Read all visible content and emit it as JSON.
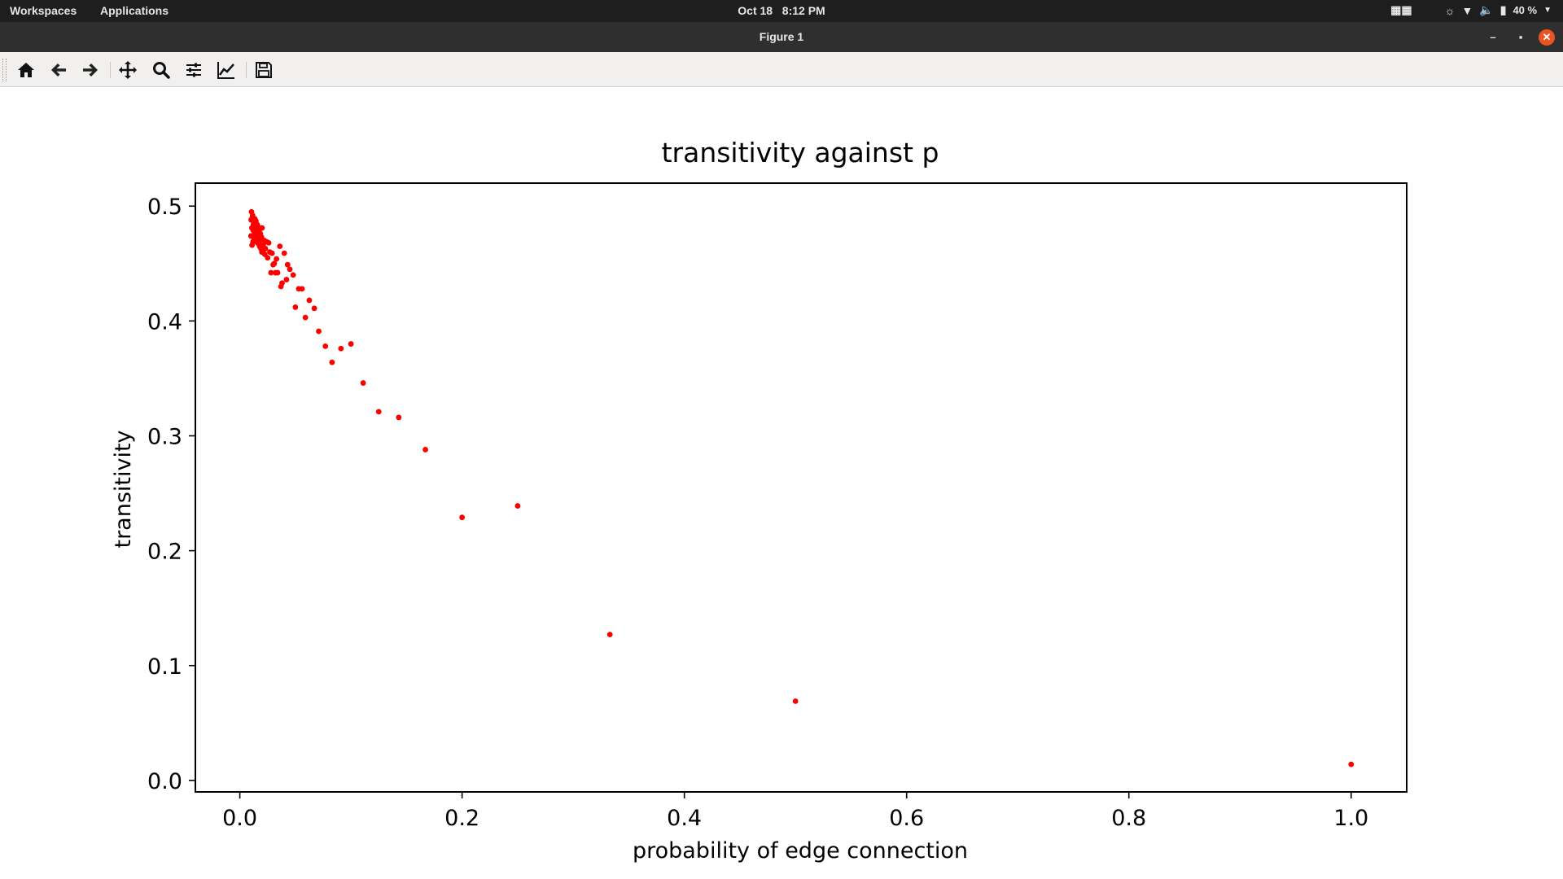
{
  "topbar": {
    "workspaces": "Workspaces",
    "applications": "Applications",
    "date": "Oct 18",
    "time": "8:12 PM",
    "battery": "40 %"
  },
  "window": {
    "title": "Figure 1"
  },
  "toolbar": {
    "icons": [
      "home-icon",
      "back-arrow-icon",
      "forward-arrow-icon",
      "pan-icon",
      "zoom-icon",
      "configure-subplots-icon",
      "edit-axis-icon",
      "save-icon"
    ]
  },
  "chart_data": {
    "type": "scatter",
    "title": "transitivity against p",
    "xlabel": "probability of edge connection",
    "ylabel": "transitivity",
    "xlim": [
      -0.04,
      1.05
    ],
    "ylim": [
      -0.01,
      0.52
    ],
    "xticks": [
      "0.0",
      "0.2",
      "0.4",
      "0.6",
      "0.8",
      "1.0"
    ],
    "yticks": [
      "0.0",
      "0.1",
      "0.2",
      "0.3",
      "0.4",
      "0.5"
    ],
    "grid": false,
    "legend": "none",
    "marker_color": "#ff0000",
    "points": [
      {
        "x": 1.0,
        "y": 0.014
      },
      {
        "x": 0.5,
        "y": 0.069
      },
      {
        "x": 0.333,
        "y": 0.127
      },
      {
        "x": 0.25,
        "y": 0.239
      },
      {
        "x": 0.2,
        "y": 0.229
      },
      {
        "x": 0.167,
        "y": 0.288
      },
      {
        "x": 0.143,
        "y": 0.316
      },
      {
        "x": 0.125,
        "y": 0.321
      },
      {
        "x": 0.111,
        "y": 0.346
      },
      {
        "x": 0.1,
        "y": 0.38
      },
      {
        "x": 0.091,
        "y": 0.376
      },
      {
        "x": 0.083,
        "y": 0.364
      },
      {
        "x": 0.077,
        "y": 0.378
      },
      {
        "x": 0.071,
        "y": 0.391
      },
      {
        "x": 0.067,
        "y": 0.411
      },
      {
        "x": 0.0625,
        "y": 0.418
      },
      {
        "x": 0.059,
        "y": 0.403
      },
      {
        "x": 0.056,
        "y": 0.428
      },
      {
        "x": 0.053,
        "y": 0.428
      },
      {
        "x": 0.05,
        "y": 0.412
      },
      {
        "x": 0.048,
        "y": 0.44
      },
      {
        "x": 0.045,
        "y": 0.445
      },
      {
        "x": 0.043,
        "y": 0.449
      },
      {
        "x": 0.042,
        "y": 0.436
      },
      {
        "x": 0.04,
        "y": 0.459
      },
      {
        "x": 0.038,
        "y": 0.433
      },
      {
        "x": 0.037,
        "y": 0.43
      },
      {
        "x": 0.036,
        "y": 0.465
      },
      {
        "x": 0.034,
        "y": 0.442
      },
      {
        "x": 0.033,
        "y": 0.454
      },
      {
        "x": 0.032,
        "y": 0.442
      },
      {
        "x": 0.031,
        "y": 0.45
      },
      {
        "x": 0.03,
        "y": 0.449
      },
      {
        "x": 0.029,
        "y": 0.459
      },
      {
        "x": 0.028,
        "y": 0.442
      },
      {
        "x": 0.027,
        "y": 0.46
      },
      {
        "x": 0.026,
        "y": 0.468
      },
      {
        "x": 0.025,
        "y": 0.455
      },
      {
        "x": 0.024,
        "y": 0.469
      },
      {
        "x": 0.023,
        "y": 0.463
      },
      {
        "x": 0.022,
        "y": 0.47
      },
      {
        "x": 0.021,
        "y": 0.466
      },
      {
        "x": 0.02,
        "y": 0.481
      },
      {
        "x": 0.0195,
        "y": 0.473
      },
      {
        "x": 0.019,
        "y": 0.463
      },
      {
        "x": 0.0185,
        "y": 0.476
      },
      {
        "x": 0.018,
        "y": 0.47
      },
      {
        "x": 0.0175,
        "y": 0.479
      },
      {
        "x": 0.017,
        "y": 0.467
      },
      {
        "x": 0.0165,
        "y": 0.482
      },
      {
        "x": 0.016,
        "y": 0.474
      },
      {
        "x": 0.0155,
        "y": 0.484
      },
      {
        "x": 0.015,
        "y": 0.47
      },
      {
        "x": 0.0145,
        "y": 0.487
      },
      {
        "x": 0.014,
        "y": 0.476
      },
      {
        "x": 0.0135,
        "y": 0.489
      },
      {
        "x": 0.013,
        "y": 0.472
      },
      {
        "x": 0.0125,
        "y": 0.486
      },
      {
        "x": 0.012,
        "y": 0.479
      },
      {
        "x": 0.0115,
        "y": 0.492
      },
      {
        "x": 0.011,
        "y": 0.466
      },
      {
        "x": 0.0105,
        "y": 0.495
      },
      {
        "x": 0.01,
        "y": 0.474
      },
      {
        "x": 0.0102,
        "y": 0.488
      },
      {
        "x": 0.0108,
        "y": 0.481
      },
      {
        "x": 0.0118,
        "y": 0.469
      },
      {
        "x": 0.0128,
        "y": 0.478
      },
      {
        "x": 0.0138,
        "y": 0.483
      },
      {
        "x": 0.0148,
        "y": 0.476
      },
      {
        "x": 0.0158,
        "y": 0.468
      },
      {
        "x": 0.0168,
        "y": 0.473
      },
      {
        "x": 0.0178,
        "y": 0.465
      },
      {
        "x": 0.0188,
        "y": 0.471
      },
      {
        "x": 0.0198,
        "y": 0.46
      },
      {
        "x": 0.0215,
        "y": 0.462
      },
      {
        "x": 0.0225,
        "y": 0.458
      },
      {
        "x": 0.0112,
        "y": 0.49
      },
      {
        "x": 0.0122,
        "y": 0.484
      },
      {
        "x": 0.0132,
        "y": 0.48
      },
      {
        "x": 0.0142,
        "y": 0.478
      }
    ]
  }
}
